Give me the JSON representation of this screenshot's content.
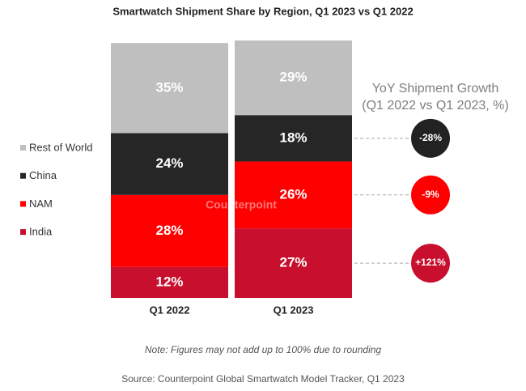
{
  "chart_data": {
    "type": "stacked_bar",
    "title": "Smartwatch Shipment Share by Region, Q1 2023 vs Q1 2022",
    "categories": [
      "Q1 2022",
      "Q1 2023"
    ],
    "series": [
      {
        "name": "Rest of World",
        "color": "#bfbfbf",
        "values": [
          35,
          29
        ],
        "value_labels": [
          "35%",
          "29%"
        ]
      },
      {
        "name": "China",
        "color": "#262626",
        "values": [
          24,
          18
        ],
        "value_labels": [
          "24%",
          "18%"
        ],
        "growth": -28,
        "growth_label": "-28%"
      },
      {
        "name": "NAM",
        "color": "#ff0000",
        "values": [
          28,
          26
        ],
        "value_labels": [
          "28%",
          "26%"
        ],
        "growth": -9,
        "growth_label": "-9%"
      },
      {
        "name": "India",
        "color": "#c8102e",
        "values": [
          12,
          27
        ],
        "value_labels": [
          "12%",
          "27%"
        ],
        "growth": 121,
        "growth_label": "+121%"
      }
    ],
    "ylim": [
      0,
      100
    ],
    "growth_title": "YoY Shipment Growth",
    "growth_subtitle": "(Q1 2022 vs Q1 2023, %)",
    "watermark": "Counterpoint",
    "note": "Note: Figures may not add up to 100% due to rounding",
    "source": "Source: Counterpoint Global Smartwatch Model Tracker, Q1 2023"
  }
}
